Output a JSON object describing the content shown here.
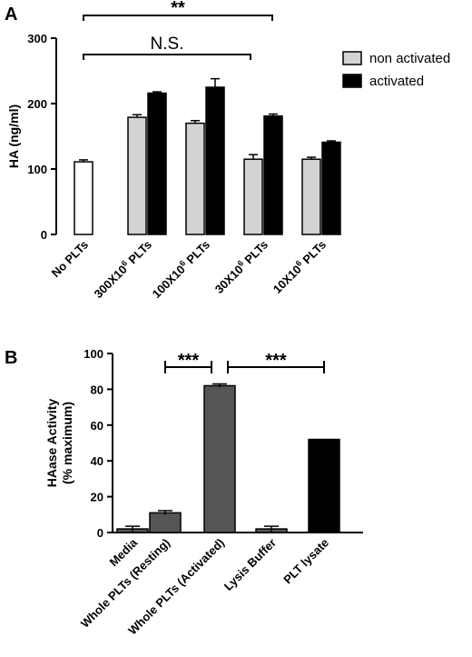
{
  "chart_data": [
    {
      "panel": "A",
      "type": "bar",
      "ylabel": "HA (ng/ml)",
      "ylim": [
        0,
        300
      ],
      "yticks": [
        0,
        100,
        200,
        300
      ],
      "categories": [
        "No PLTs",
        "300X10^6 PLTs",
        "100X10^6 PLTs",
        "30X10^6 PLTs",
        "10X10^6 PLTs"
      ],
      "category_labels": [
        {
          "main": "No PLTs"
        },
        {
          "pre": "300X10",
          "sup": "6",
          "post": " PLTs"
        },
        {
          "pre": "100X10",
          "sup": "6",
          "post": " PLTs"
        },
        {
          "pre": "30X10",
          "sup": "6",
          "post": " PLTs"
        },
        {
          "pre": "10X10",
          "sup": "6",
          "post": " PLTs"
        }
      ],
      "series": [
        {
          "name": "non activated",
          "color": "#d3d3d3",
          "values": [
            null,
            179,
            170,
            115,
            115
          ],
          "errors": [
            null,
            4,
            4,
            7,
            3
          ]
        },
        {
          "name": "activated",
          "color": "#000000",
          "values": [
            null,
            216,
            225,
            181,
            141
          ],
          "errors": [
            null,
            2,
            13,
            3,
            2
          ]
        }
      ],
      "control": {
        "category": "No PLTs",
        "value": 111,
        "error": 3,
        "color": "#ffffff"
      },
      "legend": {
        "position": "top-right"
      },
      "annotations": [
        {
          "text": "**",
          "from": "No PLTs",
          "to": "30X10^6 PLTs"
        },
        {
          "text": "N.S.",
          "from": "No PLTs",
          "to": "30X10^6 PLTs"
        }
      ]
    },
    {
      "panel": "B",
      "type": "bar",
      "ylabel": "HAase Activity\n(% maximum)",
      "ylabel_lines": [
        "HAase Activity",
        "(% maximum)"
      ],
      "ylim": [
        0,
        100
      ],
      "yticks": [
        0,
        20,
        40,
        60,
        80,
        100
      ],
      "categories": [
        "Media",
        "Whole PLTs (Resting)",
        "Whole PLTs (Activated)",
        "Lysis Buffer",
        "PLT lysate"
      ],
      "values": [
        2,
        11,
        82,
        2,
        52
      ],
      "errors": [
        1.5,
        1.2,
        1,
        1.5,
        0
      ],
      "colors": [
        "#555555",
        "#555555",
        "#555555",
        "#555555",
        "#000000"
      ],
      "annotations": [
        {
          "text": "***",
          "from": "Whole PLTs (Resting)",
          "to": "Whole PLTs (Activated)"
        },
        {
          "text": "***",
          "from": "Whole PLTs (Activated)",
          "to": "PLT lysate"
        }
      ]
    }
  ]
}
